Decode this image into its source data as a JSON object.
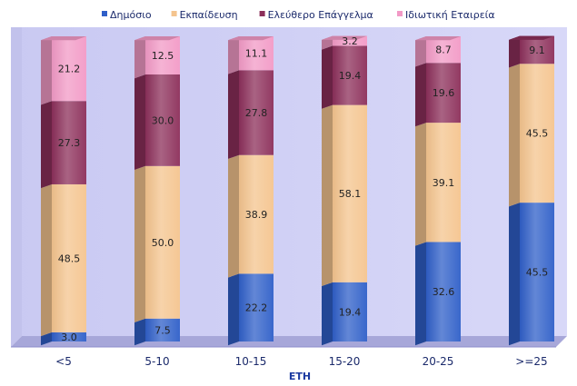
{
  "chart_data": {
    "type": "bar",
    "stacked": true,
    "percent_stacked": true,
    "three_d": true,
    "title": "",
    "xlabel": "ΕΤΗ",
    "ylabel": "",
    "ylim": [
      0,
      100
    ],
    "categories": [
      "<5",
      "5-10",
      "10-15",
      "15-20",
      "20-25",
      ">=25"
    ],
    "legend_position": "top",
    "series": [
      {
        "name": "Δημόσιο",
        "color": "#2f5fc8",
        "values": [
          3.0,
          7.5,
          22.2,
          19.4,
          32.6,
          45.5
        ]
      },
      {
        "name": "Εκπαίδευση",
        "color": "#f4c48e",
        "values": [
          48.5,
          50.0,
          38.9,
          58.1,
          39.1,
          45.5
        ]
      },
      {
        "name": "Ελεύθερο Επάγγελμα",
        "color": "#8c2f5a",
        "values": [
          27.3,
          30.0,
          27.8,
          19.4,
          19.6,
          9.1
        ]
      },
      {
        "name": "Ιδιωτική Εταιρεία",
        "color": "#f29ac6",
        "values": [
          21.2,
          12.5,
          11.1,
          3.2,
          8.7,
          0
        ]
      }
    ],
    "data_labels": [
      [
        "3.0",
        "48.5",
        "27.3",
        "21.2"
      ],
      [
        "7.5",
        "50.0",
        "30.0",
        "12.5"
      ],
      [
        "22.2",
        "38.9",
        "27.8",
        "11.1"
      ],
      [
        "19.4",
        "58.1",
        "19.4",
        "3.2"
      ],
      [
        "32.6",
        "39.1",
        "19.6",
        "8.7"
      ],
      [
        "45.5",
        "45.5",
        "9.1",
        ""
      ]
    ]
  }
}
